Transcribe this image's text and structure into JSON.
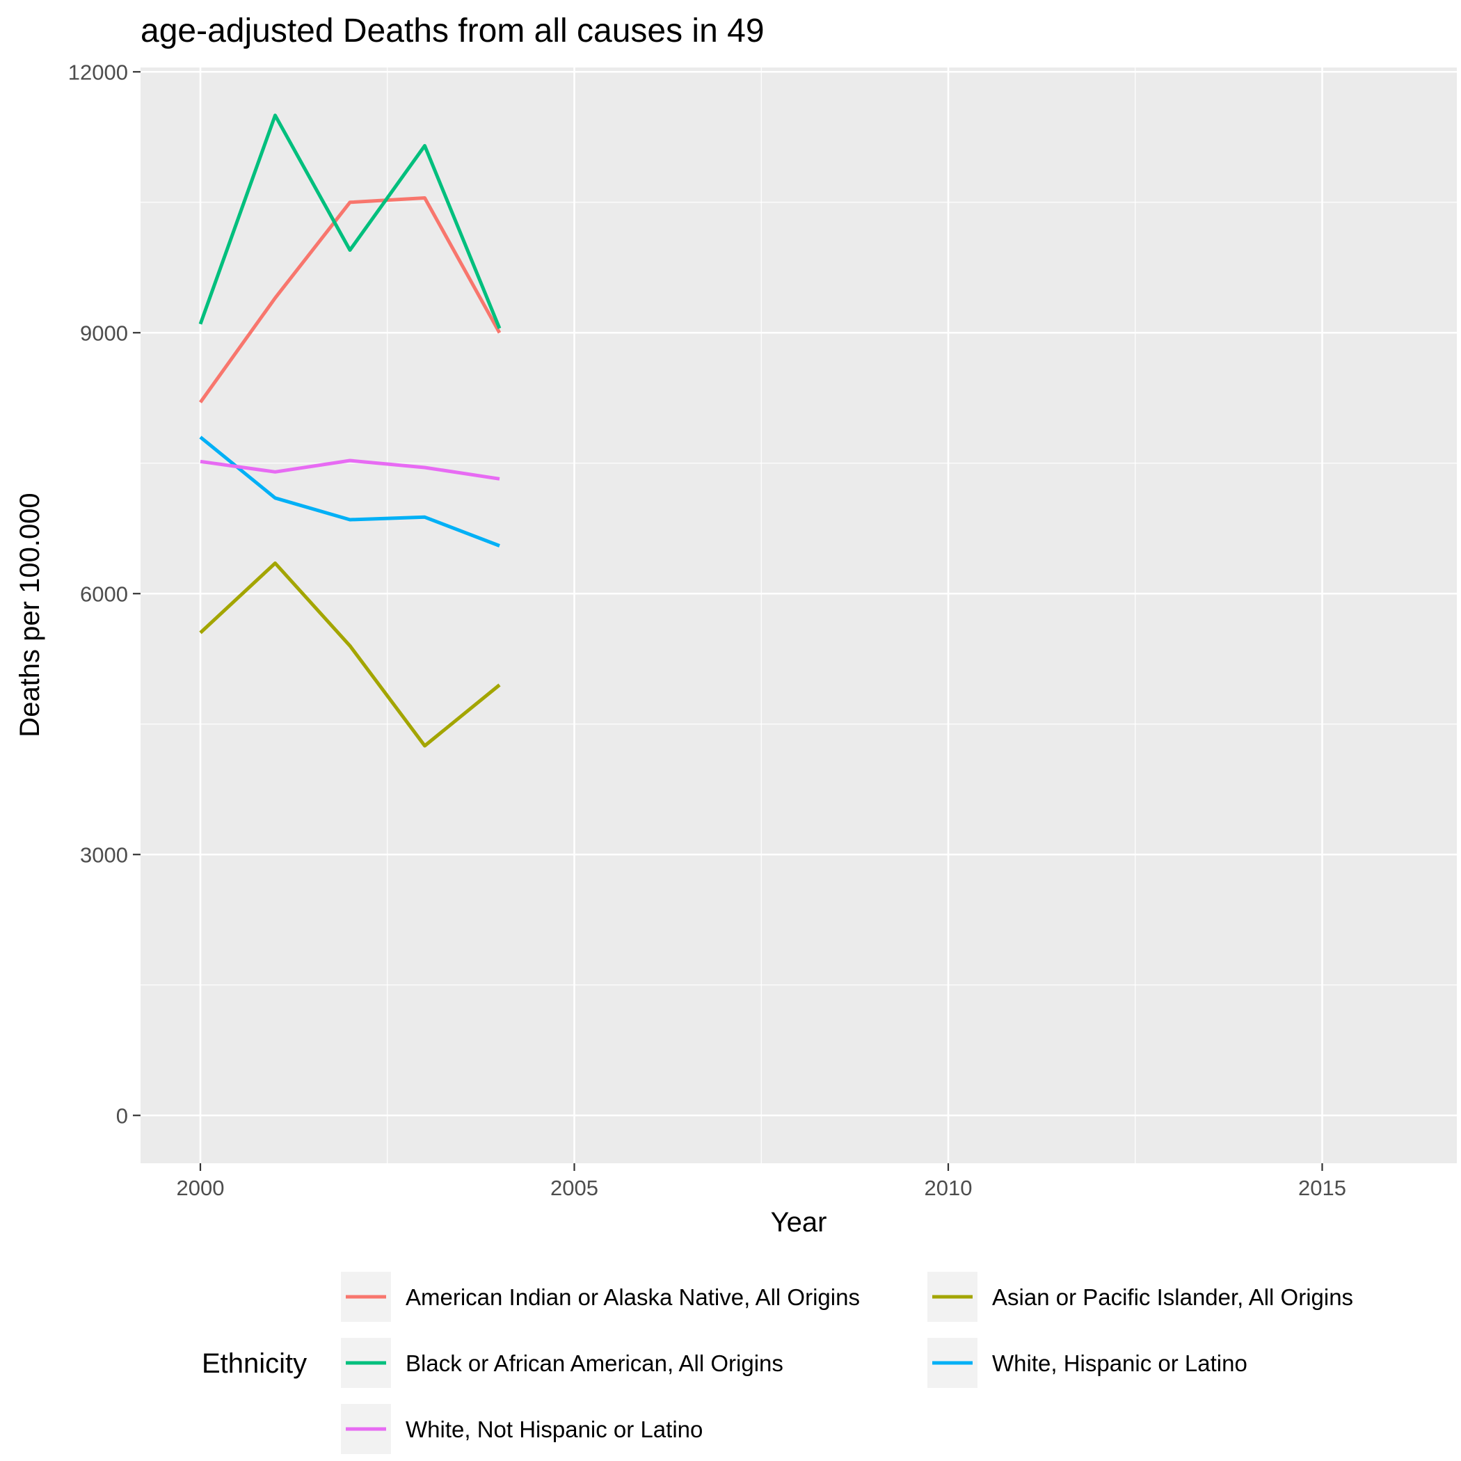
{
  "chart_data": {
    "type": "line",
    "title": "age-adjusted Deaths from all causes in 49",
    "xlabel": "Year",
    "ylabel": "Deaths per 100.000",
    "xlim": [
      1999.2,
      2016.8
    ],
    "ylim": [
      -550,
      12050
    ],
    "x_ticks": [
      2000,
      2005,
      2010,
      2015
    ],
    "y_ticks": [
      0,
      3000,
      6000,
      9000,
      12000
    ],
    "x_tick_labels": [
      "2000",
      "2005",
      "2010",
      "2015"
    ],
    "y_tick_labels": [
      "0",
      "3000",
      "6000",
      "9000",
      "12000"
    ],
    "grid": true,
    "legend_title": "Ethnicity",
    "legend_position": "bottom",
    "series": [
      {
        "name": "American Indian or Alaska Native, All Origins",
        "color": "#F8766D",
        "x": [
          2000,
          2001,
          2002,
          2003,
          2004
        ],
        "values": [
          8200,
          9400,
          10500,
          10550,
          9000
        ]
      },
      {
        "name": "Asian or Pacific Islander, All Origins",
        "color": "#A3A500",
        "x": [
          2000,
          2001,
          2002,
          2003,
          2004
        ],
        "values": [
          5550,
          6350,
          5400,
          4250,
          4950
        ]
      },
      {
        "name": "Black or African American, All Origins",
        "color": "#00BF7D",
        "x": [
          2000,
          2001,
          2002,
          2003,
          2004
        ],
        "values": [
          9100,
          11500,
          9950,
          11150,
          9050
        ]
      },
      {
        "name": "White, Hispanic or Latino",
        "color": "#00B0F6",
        "x": [
          2000,
          2001,
          2002,
          2003,
          2004
        ],
        "values": [
          7800,
          7100,
          6850,
          6880,
          6550
        ]
      },
      {
        "name": "White, Not Hispanic or Latino",
        "color": "#E76BF3",
        "x": [
          2000,
          2001,
          2002,
          2003,
          2004
        ],
        "values": [
          7520,
          7400,
          7530,
          7450,
          7320
        ]
      }
    ]
  }
}
